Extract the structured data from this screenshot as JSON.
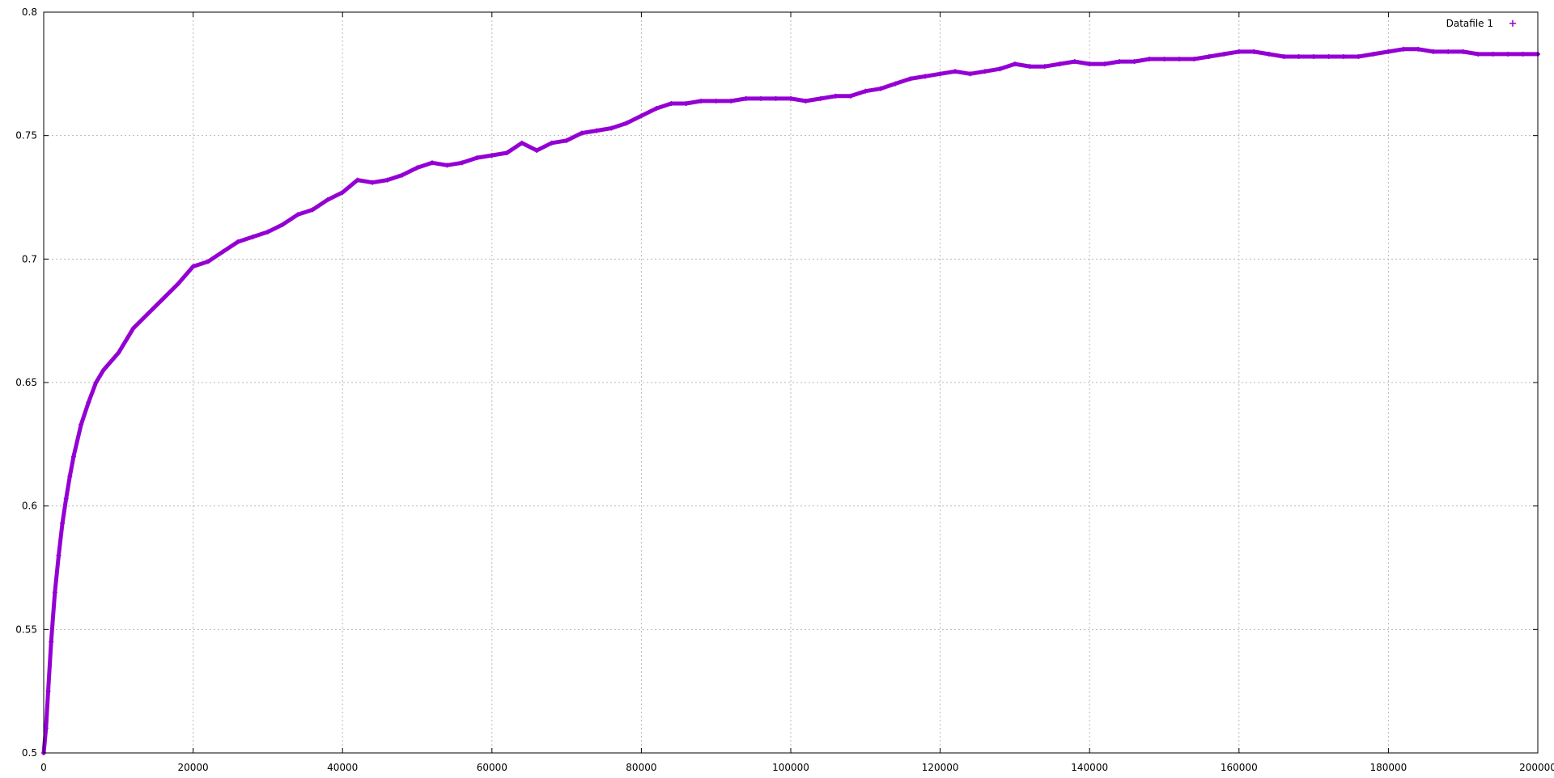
{
  "chart_data": {
    "type": "scatter",
    "title": "",
    "xlabel": "",
    "ylabel": "",
    "xlim": [
      0,
      200000
    ],
    "ylim": [
      0.5,
      0.8
    ],
    "x_ticks": [
      0,
      20000,
      40000,
      60000,
      80000,
      100000,
      120000,
      140000,
      160000,
      180000,
      200000
    ],
    "x_tick_labels": [
      "0",
      "20000",
      "40000",
      "60000",
      "80000",
      "100000",
      "120000",
      "140000",
      "160000",
      "180000",
      "200000"
    ],
    "y_ticks": [
      0.5,
      0.55,
      0.6,
      0.65,
      0.7,
      0.75,
      0.8
    ],
    "y_tick_labels": [
      "0.5",
      "0.55",
      "0.6",
      "0.65",
      "0.7",
      "0.75",
      "0.8"
    ],
    "grid": true,
    "legend": {
      "position": "top-right",
      "marker": "+"
    },
    "series": [
      {
        "name": "Datafile 1",
        "color": "#9400d3",
        "marker": "+",
        "x": [
          0,
          300,
          600,
          1000,
          1500,
          2000,
          2500,
          3000,
          3500,
          4000,
          5000,
          6000,
          7000,
          8000,
          10000,
          12000,
          14000,
          16000,
          18000,
          20000,
          22000,
          24000,
          26000,
          28000,
          30000,
          32000,
          34000,
          36000,
          38000,
          40000,
          42000,
          44000,
          46000,
          48000,
          50000,
          52000,
          54000,
          56000,
          58000,
          60000,
          62000,
          64000,
          66000,
          68000,
          70000,
          72000,
          74000,
          76000,
          78000,
          80000,
          82000,
          84000,
          86000,
          88000,
          90000,
          92000,
          94000,
          96000,
          98000,
          100000,
          102000,
          104000,
          106000,
          108000,
          110000,
          112000,
          114000,
          116000,
          118000,
          120000,
          122000,
          124000,
          126000,
          128000,
          130000,
          132000,
          134000,
          136000,
          138000,
          140000,
          142000,
          144000,
          146000,
          148000,
          150000,
          152000,
          154000,
          156000,
          158000,
          160000,
          162000,
          164000,
          166000,
          168000,
          170000,
          172000,
          174000,
          176000,
          178000,
          180000,
          182000,
          184000,
          186000,
          188000,
          190000,
          192000,
          194000,
          196000,
          198000,
          200000
        ],
        "y": [
          0.5,
          0.51,
          0.525,
          0.545,
          0.565,
          0.58,
          0.593,
          0.603,
          0.612,
          0.62,
          0.633,
          0.642,
          0.65,
          0.655,
          0.662,
          0.672,
          0.678,
          0.684,
          0.69,
          0.697,
          0.699,
          0.703,
          0.707,
          0.709,
          0.711,
          0.714,
          0.718,
          0.72,
          0.724,
          0.727,
          0.732,
          0.731,
          0.732,
          0.734,
          0.737,
          0.739,
          0.738,
          0.739,
          0.741,
          0.742,
          0.743,
          0.747,
          0.744,
          0.747,
          0.748,
          0.751,
          0.752,
          0.753,
          0.755,
          0.758,
          0.761,
          0.763,
          0.763,
          0.764,
          0.764,
          0.764,
          0.765,
          0.765,
          0.765,
          0.765,
          0.764,
          0.765,
          0.766,
          0.766,
          0.768,
          0.769,
          0.771,
          0.773,
          0.774,
          0.775,
          0.776,
          0.775,
          0.776,
          0.777,
          0.779,
          0.778,
          0.778,
          0.779,
          0.78,
          0.779,
          0.779,
          0.78,
          0.78,
          0.781,
          0.781,
          0.781,
          0.781,
          0.782,
          0.783,
          0.784,
          0.784,
          0.783,
          0.782,
          0.782,
          0.782,
          0.782,
          0.782,
          0.782,
          0.783,
          0.784,
          0.785,
          0.785,
          0.784,
          0.784,
          0.784,
          0.783,
          0.783,
          0.783,
          0.783,
          0.783
        ]
      }
    ]
  }
}
